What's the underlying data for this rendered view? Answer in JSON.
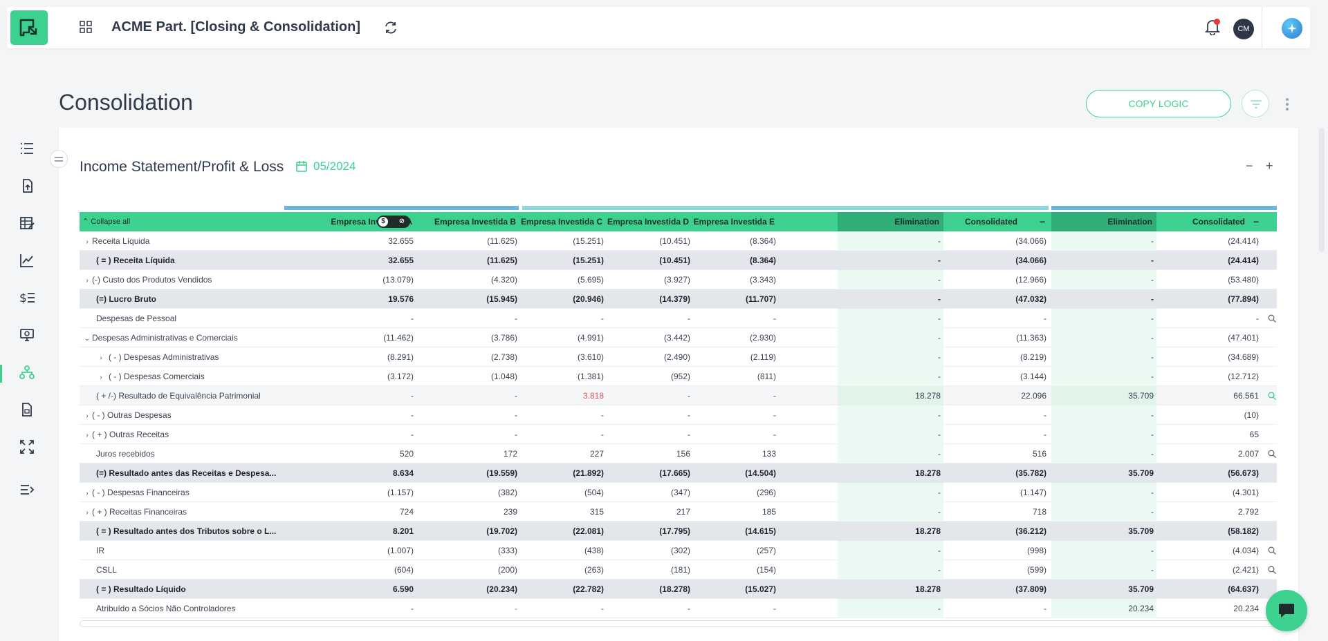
{
  "app": {
    "title": "ACME Part. [Closing & Consolidation]",
    "avatar_initials": "CM",
    "accent_color": "#3dd18f"
  },
  "sidebar": {
    "items": [
      "list-icon",
      "upload-file-icon",
      "ledger-edit-icon",
      "line-chart-icon",
      "dollar-list-icon",
      "monitor-icon",
      "org-tree-icon",
      "report-file-icon",
      "expand-arrows-icon",
      "collapse-menu-icon"
    ],
    "active": "org-tree-icon"
  },
  "page": {
    "title": "Consolidation",
    "copy_logic_label": "COPY LOGIC"
  },
  "card": {
    "title": "Income Statement/Profit & Loss",
    "date": "05/2024"
  },
  "table": {
    "collapse_all": "Collapse all",
    "columns": [
      "Empresa Investida A",
      "Empresa Investida B",
      "Empresa Investida C",
      "Empresa Investida D",
      "Empresa Investida E",
      "Elimination",
      "Consolidated",
      "Elimination",
      "Consolidated"
    ],
    "toggle_symbol": "$",
    "rows": [
      {
        "label": "Receita Líquida",
        "type": "expand",
        "indent": 0,
        "values": [
          "32.655",
          "(11.625)",
          "(15.251)",
          "(10.451)",
          "(8.364)",
          "-",
          "(34.066)",
          "-",
          "(24.414)"
        ]
      },
      {
        "label": "( = ) Receita Líquida",
        "type": "total",
        "indent": 1,
        "values": [
          "32.655",
          "(11.625)",
          "(15.251)",
          "(10.451)",
          "(8.364)",
          "-",
          "(34.066)",
          "-",
          "(24.414)"
        ]
      },
      {
        "label": "(-) Custo dos Produtos Vendidos",
        "type": "expand",
        "indent": 0,
        "values": [
          "(13.079)",
          "(4.320)",
          "(5.695)",
          "(3.927)",
          "(3.343)",
          "-",
          "(12.966)",
          "-",
          "(53.480)"
        ]
      },
      {
        "label": "(=) Lucro Bruto",
        "type": "total",
        "indent": 1,
        "values": [
          "19.576",
          "(15.945)",
          "(20.946)",
          "(14.379)",
          "(11.707)",
          "-",
          "(47.032)",
          "-",
          "(77.894)"
        ]
      },
      {
        "label": "Despesas de Pessoal",
        "type": "plain",
        "indent": 1,
        "search": true,
        "values": [
          "-",
          "-",
          "-",
          "-",
          "-",
          "-",
          "-",
          "-",
          "-"
        ]
      },
      {
        "label": "Despesas Administrativas e Comerciais",
        "type": "open",
        "indent": 0,
        "values": [
          "(11.462)",
          "(3.786)",
          "(4.991)",
          "(3.442)",
          "(2.930)",
          "-",
          "(11.363)",
          "-",
          "(47.401)"
        ]
      },
      {
        "label": "( - ) Despesas Administrativas",
        "type": "subexpand",
        "indent": 2,
        "values": [
          "(8.291)",
          "(2.738)",
          "(3.610)",
          "(2.490)",
          "(2.119)",
          "-",
          "(8.219)",
          "-",
          "(34.689)"
        ]
      },
      {
        "label": "( - ) Despesas Comerciais",
        "type": "subexpand",
        "indent": 2,
        "values": [
          "(3.172)",
          "(1.048)",
          "(1.381)",
          "(952)",
          "(811)",
          "-",
          "(3.144)",
          "-",
          "(12.712)"
        ]
      },
      {
        "label": "( + /-) Resultado de Equivalência Patrimonial",
        "type": "plain",
        "indent": 1,
        "highlight": true,
        "search": true,
        "red_col": 2,
        "values": [
          "-",
          "-",
          "3.818",
          "-",
          "-",
          "18.278",
          "22.096",
          "35.709",
          "66.561"
        ]
      },
      {
        "label": "( - ) Outras Despesas",
        "type": "expand",
        "indent": 0,
        "values": [
          "-",
          "-",
          "-",
          "-",
          "-",
          "-",
          "-",
          "-",
          "(10)"
        ]
      },
      {
        "label": "( + ) Outras Receitas",
        "type": "expand",
        "indent": 0,
        "values": [
          "-",
          "-",
          "-",
          "-",
          "-",
          "-",
          "-",
          "-",
          "65"
        ]
      },
      {
        "label": "Juros recebidos",
        "type": "plain",
        "indent": 1,
        "search": true,
        "values": [
          "520",
          "172",
          "227",
          "156",
          "133",
          "-",
          "516",
          "-",
          "2.007"
        ]
      },
      {
        "label": "(=) Resultado antes das Receitas e Despesa...",
        "type": "total",
        "indent": 1,
        "values": [
          "8.634",
          "(19.559)",
          "(21.892)",
          "(17.665)",
          "(14.504)",
          "18.278",
          "(35.782)",
          "35.709",
          "(56.673)"
        ]
      },
      {
        "label": "( - ) Despesas Financeiras",
        "type": "expand",
        "indent": 0,
        "values": [
          "(1.157)",
          "(382)",
          "(504)",
          "(347)",
          "(296)",
          "-",
          "(1.147)",
          "-",
          "(4.301)"
        ]
      },
      {
        "label": "( + ) Receitas Financeiras",
        "type": "expand",
        "indent": 0,
        "values": [
          "724",
          "239",
          "315",
          "217",
          "185",
          "-",
          "718",
          "-",
          "2.792"
        ]
      },
      {
        "label": "( = ) Resultado antes dos Tributos sobre o L...",
        "type": "total",
        "indent": 1,
        "values": [
          "8.201",
          "(19.702)",
          "(22.081)",
          "(17.795)",
          "(14.615)",
          "18.278",
          "(36.212)",
          "35.709",
          "(58.182)"
        ]
      },
      {
        "label": "IR",
        "type": "plain",
        "indent": 1,
        "search": true,
        "values": [
          "(1.007)",
          "(333)",
          "(438)",
          "(302)",
          "(257)",
          "-",
          "(998)",
          "-",
          "(4.034)"
        ]
      },
      {
        "label": "CSLL",
        "type": "plain",
        "indent": 1,
        "search": true,
        "values": [
          "(604)",
          "(200)",
          "(263)",
          "(181)",
          "(154)",
          "-",
          "(599)",
          "-",
          "(2.421)"
        ]
      },
      {
        "label": "( = ) Resultado Líquido",
        "type": "total",
        "indent": 1,
        "values": [
          "6.590",
          "(20.234)",
          "(22.782)",
          "(18.278)",
          "(15.027)",
          "18.278",
          "(37.809)",
          "35.709",
          "(64.637)"
        ]
      },
      {
        "label": "Atribuído a Sócios Não Controladores",
        "type": "plain",
        "indent": 1,
        "red_col": 1,
        "values": [
          "-",
          "-",
          "-",
          "-",
          "-",
          "-",
          "-",
          "20.234",
          "20.234"
        ]
      }
    ]
  }
}
